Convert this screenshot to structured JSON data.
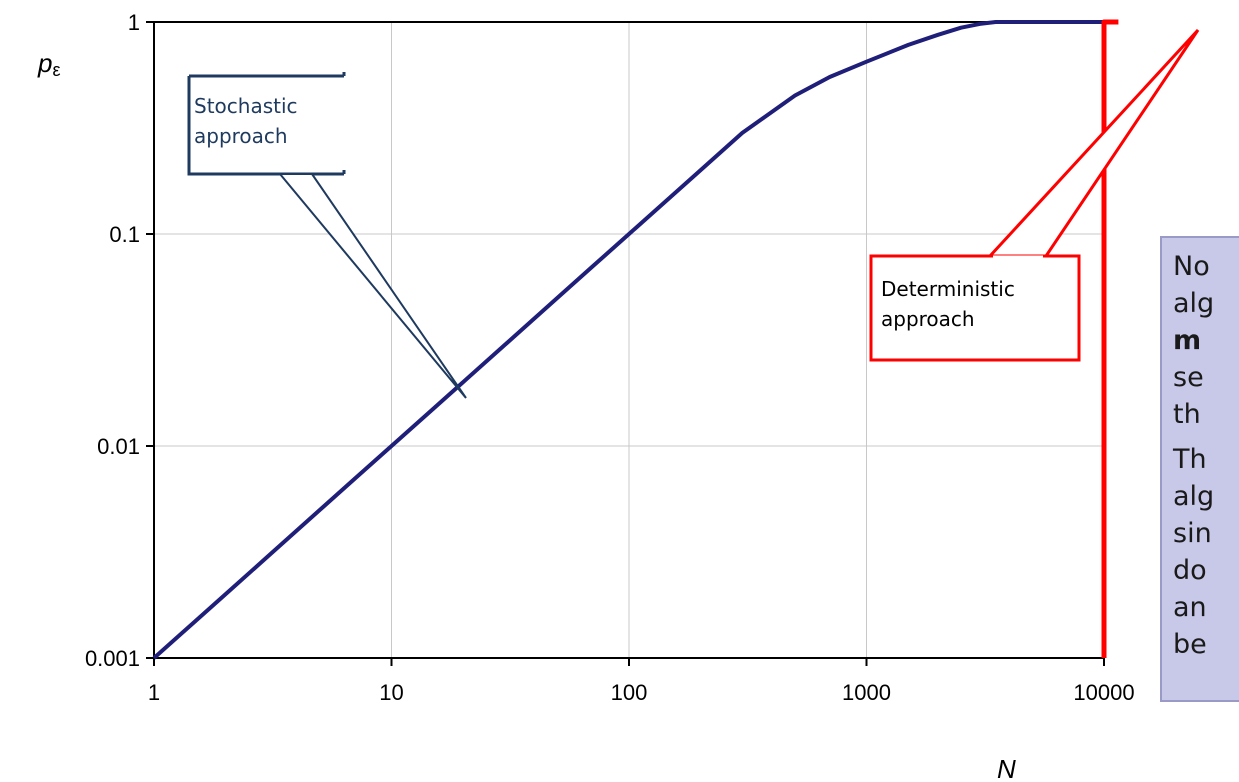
{
  "chart_data": {
    "type": "line",
    "x_scale": "log",
    "y_scale": "log",
    "xlim": [
      1,
      10000
    ],
    "ylim": [
      0.001,
      1
    ],
    "xlabel": "N",
    "ylabel": "pε",
    "ylabel_main": "p",
    "ylabel_sub": "ε",
    "x_ticks": [
      "1",
      "10",
      "100",
      "1000",
      "10000"
    ],
    "y_ticks": [
      "1",
      "0.1",
      "0.01",
      "0.001"
    ],
    "grid": true,
    "series": [
      {
        "name": "Stochastic approach",
        "color": "#1f1f7a",
        "x": [
          1,
          1.5,
          2,
          3,
          5,
          7,
          10,
          15,
          20,
          30,
          50,
          70,
          100,
          150,
          200,
          300,
          500,
          700,
          1000,
          1500,
          2000,
          2500,
          3000,
          3500,
          4000,
          5000,
          7000,
          10000
        ],
        "y": [
          0.001,
          0.0015,
          0.002,
          0.003,
          0.005,
          0.007,
          0.01,
          0.015,
          0.02,
          0.03,
          0.05,
          0.07,
          0.1,
          0.15,
          0.2,
          0.3,
          0.45,
          0.55,
          0.65,
          0.78,
          0.87,
          0.94,
          0.98,
          1.0,
          1.0,
          1.0,
          1.0,
          1.0
        ]
      },
      {
        "name": "Deterministic approach",
        "color": "#ff0000",
        "x": [
          10000,
          10000,
          11500
        ],
        "y": [
          0.001,
          1,
          1
        ]
      }
    ],
    "annotations": [
      {
        "lines": [
          "Stochastic",
          "approach"
        ],
        "color": "#1f3a5f",
        "border": "#1f3a5f"
      },
      {
        "lines": [
          "Deterministic",
          "approach"
        ],
        "color": "#000000",
        "border": "#ff0000"
      }
    ]
  },
  "note": {
    "p1": [
      "No",
      "alg",
      "m",
      "se",
      "th"
    ],
    "p1_bold_index": 2,
    "p2": [
      "Th",
      "alg",
      "sin",
      "do",
      "an",
      "be"
    ]
  }
}
